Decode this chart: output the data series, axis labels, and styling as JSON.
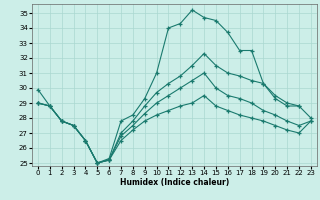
{
  "xlabel": "Humidex (Indice chaleur)",
  "background_color": "#cceee8",
  "grid_color": "#aad8d0",
  "line_color": "#1a7a6e",
  "xlim": [
    -0.5,
    23.5
  ],
  "ylim": [
    24.8,
    35.6
  ],
  "yticks": [
    25,
    26,
    27,
    28,
    29,
    30,
    31,
    32,
    33,
    34,
    35
  ],
  "xticks": [
    0,
    1,
    2,
    3,
    4,
    5,
    6,
    7,
    8,
    9,
    10,
    11,
    12,
    13,
    14,
    15,
    16,
    17,
    18,
    19,
    20,
    21,
    22,
    23
  ],
  "curve1_x": [
    0,
    1,
    2,
    3,
    4,
    5,
    6,
    7,
    8,
    9,
    10,
    11,
    12,
    13,
    14,
    15,
    16,
    17,
    18,
    19,
    20,
    21,
    22
  ],
  "curve1_y": [
    29.9,
    28.8,
    27.8,
    27.5,
    26.5,
    25.0,
    25.3,
    27.8,
    28.2,
    29.3,
    31.0,
    34.0,
    34.3,
    35.2,
    34.7,
    34.5,
    33.7,
    32.5,
    32.5,
    30.3,
    29.3,
    28.8,
    28.8
  ],
  "curve2_x": [
    0,
    1,
    2,
    3,
    4,
    5,
    6,
    7,
    8,
    9,
    10,
    11,
    12,
    13,
    14,
    15,
    16,
    17,
    18,
    19,
    20,
    21,
    22,
    23
  ],
  "curve2_y": [
    29.0,
    28.8,
    27.8,
    27.5,
    26.5,
    25.0,
    25.2,
    27.0,
    27.8,
    28.8,
    29.7,
    30.3,
    30.8,
    31.5,
    32.3,
    31.5,
    31.0,
    30.8,
    30.5,
    30.3,
    29.5,
    29.0,
    28.8,
    28.0
  ],
  "curve3_x": [
    0,
    1,
    2,
    3,
    4,
    5,
    6,
    7,
    8,
    9,
    10,
    11,
    12,
    13,
    14,
    15,
    16,
    17,
    18,
    19,
    20,
    21,
    22,
    23
  ],
  "curve3_y": [
    29.0,
    28.8,
    27.8,
    27.5,
    26.5,
    25.0,
    25.2,
    26.8,
    27.5,
    28.3,
    29.0,
    29.5,
    30.0,
    30.5,
    31.0,
    30.0,
    29.5,
    29.3,
    29.0,
    28.5,
    28.2,
    27.8,
    27.5,
    27.8
  ],
  "curve4_x": [
    0,
    1,
    2,
    3,
    4,
    5,
    6,
    7,
    8,
    9,
    10,
    11,
    12,
    13,
    14,
    15,
    16,
    17,
    18,
    19,
    20,
    21,
    22,
    23
  ],
  "curve4_y": [
    29.0,
    28.8,
    27.8,
    27.5,
    26.5,
    25.0,
    25.2,
    26.5,
    27.2,
    27.8,
    28.2,
    28.5,
    28.8,
    29.0,
    29.5,
    28.8,
    28.5,
    28.2,
    28.0,
    27.8,
    27.5,
    27.2,
    27.0,
    27.8
  ]
}
